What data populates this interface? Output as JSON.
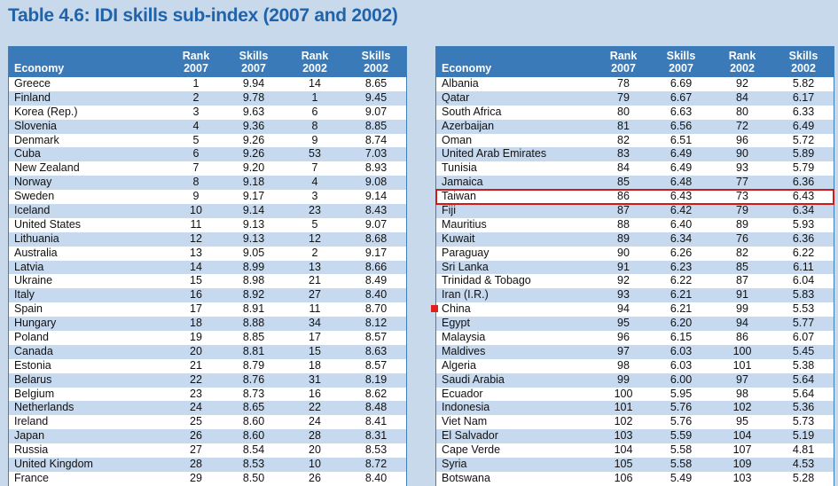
{
  "title": "Table 4.6: IDI skills sub-index (2007 and 2002)",
  "headers": {
    "economy": "Economy",
    "rank2007": [
      "Rank",
      "2007"
    ],
    "skills2007": [
      "Skills",
      "2007"
    ],
    "rank2002": [
      "Rank",
      "2002"
    ],
    "skills2002": [
      "Skills",
      "2002"
    ]
  },
  "left_rows": [
    [
      "Greece",
      "1",
      "9.94",
      "14",
      "8.65"
    ],
    [
      "Finland",
      "2",
      "9.78",
      "1",
      "9.45"
    ],
    [
      "Korea (Rep.)",
      "3",
      "9.63",
      "6",
      "9.07"
    ],
    [
      "Slovenia",
      "4",
      "9.36",
      "8",
      "8.85"
    ],
    [
      "Denmark",
      "5",
      "9.26",
      "9",
      "8.74"
    ],
    [
      "Cuba",
      "6",
      "9.26",
      "53",
      "7.03"
    ],
    [
      "New Zealand",
      "7",
      "9.20",
      "7",
      "8.93"
    ],
    [
      "Norway",
      "8",
      "9.18",
      "4",
      "9.08"
    ],
    [
      "Sweden",
      "9",
      "9.17",
      "3",
      "9.14"
    ],
    [
      "Iceland",
      "10",
      "9.14",
      "23",
      "8.43"
    ],
    [
      "United States",
      "11",
      "9.13",
      "5",
      "9.07"
    ],
    [
      "Lithuania",
      "12",
      "9.13",
      "12",
      "8.68"
    ],
    [
      "Australia",
      "13",
      "9.05",
      "2",
      "9.17"
    ],
    [
      "Latvia",
      "14",
      "8.99",
      "13",
      "8.66"
    ],
    [
      "Ukraine",
      "15",
      "8.98",
      "21",
      "8.49"
    ],
    [
      "Italy",
      "16",
      "8.92",
      "27",
      "8.40"
    ],
    [
      "Spain",
      "17",
      "8.91",
      "11",
      "8.70"
    ],
    [
      "Hungary",
      "18",
      "8.88",
      "34",
      "8.12"
    ],
    [
      "Poland",
      "19",
      "8.85",
      "17",
      "8.57"
    ],
    [
      "Canada",
      "20",
      "8.81",
      "15",
      "8.63"
    ],
    [
      "Estonia",
      "21",
      "8.79",
      "18",
      "8.57"
    ],
    [
      "Belarus",
      "22",
      "8.76",
      "31",
      "8.19"
    ],
    [
      "Belgium",
      "23",
      "8.73",
      "16",
      "8.62"
    ],
    [
      "Netherlands",
      "24",
      "8.65",
      "22",
      "8.48"
    ],
    [
      "Ireland",
      "25",
      "8.60",
      "24",
      "8.41"
    ],
    [
      "Japan",
      "26",
      "8.60",
      "28",
      "8.31"
    ],
    [
      "Russia",
      "27",
      "8.54",
      "20",
      "8.53"
    ],
    [
      "United Kingdom",
      "28",
      "8.53",
      "10",
      "8.72"
    ],
    [
      "France",
      "29",
      "8.50",
      "26",
      "8.40"
    ]
  ],
  "right_rows": [
    [
      "Albania",
      "78",
      "6.69",
      "92",
      "5.82"
    ],
    [
      "Qatar",
      "79",
      "6.67",
      "84",
      "6.17"
    ],
    [
      "South Africa",
      "80",
      "6.63",
      "80",
      "6.33"
    ],
    [
      "Azerbaijan",
      "81",
      "6.56",
      "72",
      "6.49"
    ],
    [
      "Oman",
      "82",
      "6.51",
      "96",
      "5.72"
    ],
    [
      "United Arab Emirates",
      "83",
      "6.49",
      "90",
      "5.89"
    ],
    [
      "Tunisia",
      "84",
      "6.49",
      "93",
      "5.79"
    ],
    [
      "Jamaica",
      "85",
      "6.48",
      "77",
      "6.36"
    ],
    [
      "Taiwan",
      "86",
      "6.43",
      "73",
      "6.43"
    ],
    [
      "Fiji",
      "87",
      "6.42",
      "79",
      "6.34"
    ],
    [
      "Mauritius",
      "88",
      "6.40",
      "89",
      "5.93"
    ],
    [
      "Kuwait",
      "89",
      "6.34",
      "76",
      "6.36"
    ],
    [
      "Paraguay",
      "90",
      "6.26",
      "82",
      "6.22"
    ],
    [
      "Sri Lanka",
      "91",
      "6.23",
      "85",
      "6.11"
    ],
    [
      "Trinidad & Tobago",
      "92",
      "6.22",
      "87",
      "6.04"
    ],
    [
      "Iran (I.R.)",
      "93",
      "6.21",
      "91",
      "5.83"
    ],
    [
      "China",
      "94",
      "6.21",
      "99",
      "5.53"
    ],
    [
      "Egypt",
      "95",
      "6.20",
      "94",
      "5.77"
    ],
    [
      "Malaysia",
      "96",
      "6.15",
      "86",
      "6.07"
    ],
    [
      "Maldives",
      "97",
      "6.03",
      "100",
      "5.45"
    ],
    [
      "Algeria",
      "98",
      "6.03",
      "101",
      "5.38"
    ],
    [
      "Saudi Arabia",
      "99",
      "6.00",
      "97",
      "5.64"
    ],
    [
      "Ecuador",
      "100",
      "5.95",
      "98",
      "5.64"
    ],
    [
      "Indonesia",
      "101",
      "5.76",
      "102",
      "5.36"
    ],
    [
      "Viet Nam",
      "102",
      "5.76",
      "95",
      "5.73"
    ],
    [
      "El Salvador",
      "103",
      "5.59",
      "104",
      "5.19"
    ],
    [
      "Cape Verde",
      "104",
      "5.58",
      "107",
      "4.81"
    ],
    [
      "Syria",
      "105",
      "5.58",
      "109",
      "4.53"
    ],
    [
      "Botswana",
      "106",
      "5.49",
      "103",
      "5.28"
    ]
  ],
  "highlight": {
    "right_row_index": 8,
    "border_color": "#d01a1a"
  },
  "marker": {
    "right_row_index": 16,
    "color": "#e0201c"
  }
}
